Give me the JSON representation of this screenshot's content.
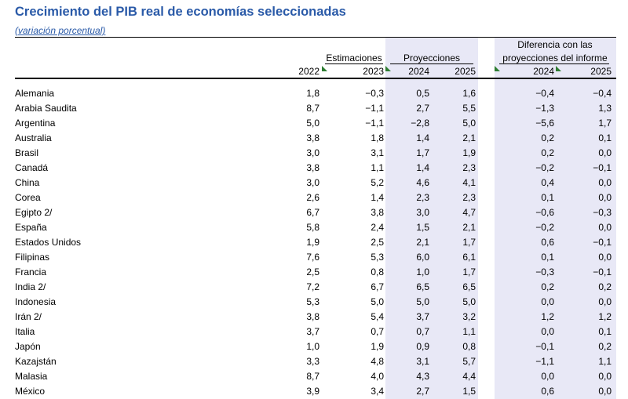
{
  "title": "Crecimiento del PIB real de economías seleccionadas",
  "subtitle": "(variación porcentual)",
  "header": {
    "estimaciones": "Estimaciones",
    "proyecciones": "Proyecciones",
    "diferencia_line1": "Diferencia con las",
    "diferencia_line2": "proyecciones del informe",
    "col_2022": "2022",
    "col_2023": "2023",
    "col_2024": "2024",
    "col_2025": "2025",
    "col_diff_2024": "2024",
    "col_diff_2025": "2025"
  },
  "colors": {
    "title": "#2a5aa8",
    "shade": "#e8e8f6",
    "marker": "#2e7d32"
  },
  "rows": [
    {
      "country": "Alemania",
      "v2022": "1,8",
      "v2023": "−0,3",
      "p2024": "0,5",
      "p2025": "1,6",
      "d2024": "−0,4",
      "d2025": "−0,4"
    },
    {
      "country": "Arabia Saudita",
      "v2022": "8,7",
      "v2023": "−1,1",
      "p2024": "2,7",
      "p2025": "5,5",
      "d2024": "−1,3",
      "d2025": "1,3"
    },
    {
      "country": "Argentina",
      "v2022": "5,0",
      "v2023": "−1,1",
      "p2024": "−2,8",
      "p2025": "5,0",
      "d2024": "−5,6",
      "d2025": "1,7"
    },
    {
      "country": "Australia",
      "v2022": "3,8",
      "v2023": "1,8",
      "p2024": "1,4",
      "p2025": "2,1",
      "d2024": "0,2",
      "d2025": "0,1"
    },
    {
      "country": "Brasil",
      "v2022": "3,0",
      "v2023": "3,1",
      "p2024": "1,7",
      "p2025": "1,9",
      "d2024": "0,2",
      "d2025": "0,0"
    },
    {
      "country": "Canadá",
      "v2022": "3,8",
      "v2023": "1,1",
      "p2024": "1,4",
      "p2025": "2,3",
      "d2024": "−0,2",
      "d2025": "−0,1"
    },
    {
      "country": "China",
      "v2022": "3,0",
      "v2023": "5,2",
      "p2024": "4,6",
      "p2025": "4,1",
      "d2024": "0,4",
      "d2025": "0,0"
    },
    {
      "country": "Corea",
      "v2022": "2,6",
      "v2023": "1,4",
      "p2024": "2,3",
      "p2025": "2,3",
      "d2024": "0,1",
      "d2025": "0,0"
    },
    {
      "country": "Egipto 2/",
      "v2022": "6,7",
      "v2023": "3,8",
      "p2024": "3,0",
      "p2025": "4,7",
      "d2024": "−0,6",
      "d2025": "−0,3"
    },
    {
      "country": "España",
      "v2022": "5,8",
      "v2023": "2,4",
      "p2024": "1,5",
      "p2025": "2,1",
      "d2024": "−0,2",
      "d2025": "0,0"
    },
    {
      "country": "Estados Unidos",
      "v2022": "1,9",
      "v2023": "2,5",
      "p2024": "2,1",
      "p2025": "1,7",
      "d2024": "0,6",
      "d2025": "−0,1"
    },
    {
      "country": "Filipinas",
      "v2022": "7,6",
      "v2023": "5,3",
      "p2024": "6,0",
      "p2025": "6,1",
      "d2024": "0,1",
      "d2025": "0,0"
    },
    {
      "country": "Francia",
      "v2022": "2,5",
      "v2023": "0,8",
      "p2024": "1,0",
      "p2025": "1,7",
      "d2024": "−0,3",
      "d2025": "−0,1"
    },
    {
      "country": "India 2/",
      "v2022": "7,2",
      "v2023": "6,7",
      "p2024": "6,5",
      "p2025": "6,5",
      "d2024": "0,2",
      "d2025": "0,2"
    },
    {
      "country": "Indonesia",
      "v2022": "5,3",
      "v2023": "5,0",
      "p2024": "5,0",
      "p2025": "5,0",
      "d2024": "0,0",
      "d2025": "0,0"
    },
    {
      "country": "Irán 2/",
      "v2022": "3,8",
      "v2023": "5,4",
      "p2024": "3,7",
      "p2025": "3,2",
      "d2024": "1,2",
      "d2025": "1,2"
    },
    {
      "country": "Italia",
      "v2022": "3,7",
      "v2023": "0,7",
      "p2024": "0,7",
      "p2025": "1,1",
      "d2024": "0,0",
      "d2025": "0,1"
    },
    {
      "country": "Japón",
      "v2022": "1,0",
      "v2023": "1,9",
      "p2024": "0,9",
      "p2025": "0,8",
      "d2024": "−0,1",
      "d2025": "0,2"
    },
    {
      "country": "Kazajstán",
      "v2022": "3,3",
      "v2023": "4,8",
      "p2024": "3,1",
      "p2025": "5,7",
      "d2024": "−1,1",
      "d2025": "1,1"
    },
    {
      "country": "Malasia",
      "v2022": "8,7",
      "v2023": "4,0",
      "p2024": "4,3",
      "p2025": "4,4",
      "d2024": "0,0",
      "d2025": "0,0"
    },
    {
      "country": "México",
      "v2022": "3,9",
      "v2023": "3,4",
      "p2024": "2,7",
      "p2025": "1,5",
      "d2024": "0,6",
      "d2025": "0,0"
    }
  ]
}
